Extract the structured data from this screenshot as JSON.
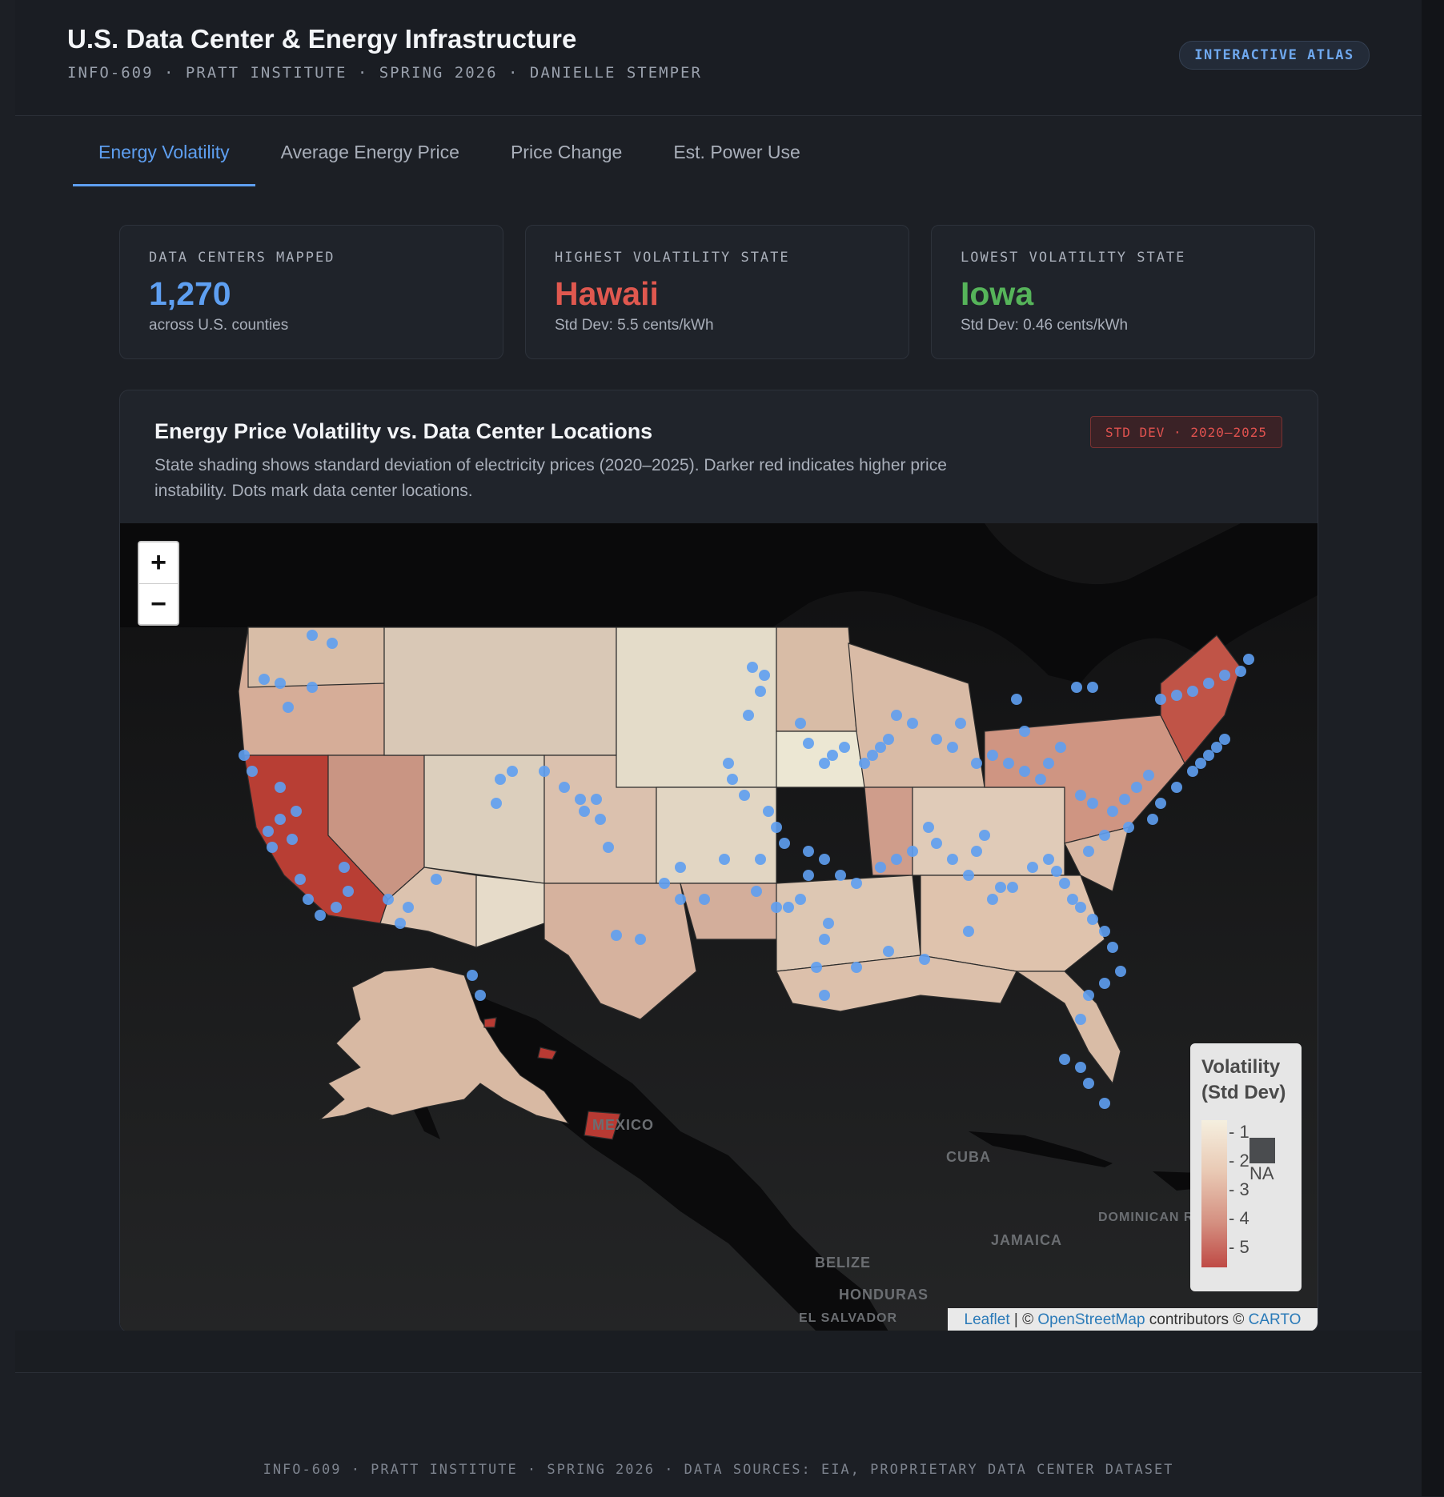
{
  "header": {
    "title": "U.S. Data Center & Energy Infrastructure",
    "subtitle": "INFO-609 · PRATT INSTITUTE · SPRING 2026 · DANIELLE STEMPER",
    "badge": "INTERACTIVE ATLAS"
  },
  "tabs": [
    {
      "label": "Energy Volatility",
      "active": true
    },
    {
      "label": "Average Energy Price",
      "active": false
    },
    {
      "label": "Price Change",
      "active": false
    },
    {
      "label": "Est. Power Use",
      "active": false
    }
  ],
  "stats": [
    {
      "label": "DATA CENTERS MAPPED",
      "value": "1,270",
      "note": "across U.S. counties",
      "color": "#5e9ff1"
    },
    {
      "label": "HIGHEST VOLATILITY STATE",
      "value": "Hawaii",
      "note": "Std Dev: 5.5 cents/kWh",
      "color": "#e0584f"
    },
    {
      "label": "LOWEST VOLATILITY STATE",
      "value": "Iowa",
      "note": "Std Dev: 0.46 cents/kWh",
      "color": "#56b45a"
    }
  ],
  "card": {
    "title": "Energy Price Volatility vs. Data Center Locations",
    "badge": "STD DEV · 2020–2025",
    "description": "State shading shows standard deviation of electricity prices (2020–2025). Darker red indicates higher price instability. Dots mark data center locations."
  },
  "map": {
    "zoom_in": "+",
    "zoom_out": "−",
    "labels": [
      "MEXICO",
      "CUBA",
      "JAMAICA",
      "DOMINICAN REPUBLIC",
      "BELIZE",
      "HONDURAS",
      "EL SALVADOR"
    ],
    "legend": {
      "title": "Volatility (Std Dev)",
      "ticks": [
        "1",
        "2",
        "3",
        "4",
        "5"
      ],
      "na_label": "NA"
    },
    "attribution": {
      "leaflet": "Leaflet",
      "sep1": " | © ",
      "osm": "OpenStreetMap",
      "contrib": " contributors © ",
      "carto": "CARTO"
    },
    "colors": {
      "low": "#f5efdf",
      "mid": "#d9a48f",
      "high": "#b83a33",
      "dots": "#5e9ff1"
    }
  },
  "footer": "INFO-609 · PRATT INSTITUTE · SPRING 2026 · DATA SOURCES: EIA, PROPRIETARY DATA CENTER DATASET"
}
